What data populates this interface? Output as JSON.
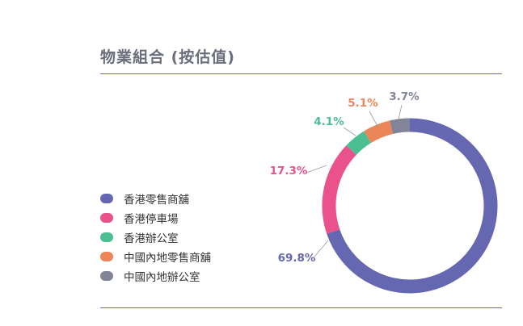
{
  "page": {
    "title": "物業組合 (按估值)"
  },
  "chart_data": {
    "type": "pie",
    "style": "donut",
    "title": "物業組合 (按估值)",
    "legend_position": "left",
    "slices": [
      {
        "label": "香港零售商舖",
        "value": 69.8,
        "value_label": "69.8%",
        "color": "#6667b1"
      },
      {
        "label": "香港停車場",
        "value": 17.3,
        "value_label": "17.3%",
        "color": "#e9528a"
      },
      {
        "label": "香港辦公室",
        "value": 4.1,
        "value_label": "4.1%",
        "color": "#4bbf92"
      },
      {
        "label": "中國內地零售商舖",
        "value": 5.1,
        "value_label": "5.1%",
        "color": "#ec8557"
      },
      {
        "label": "中國內地辦公室",
        "value": 3.7,
        "value_label": "3.7%",
        "color": "#818597"
      }
    ]
  }
}
